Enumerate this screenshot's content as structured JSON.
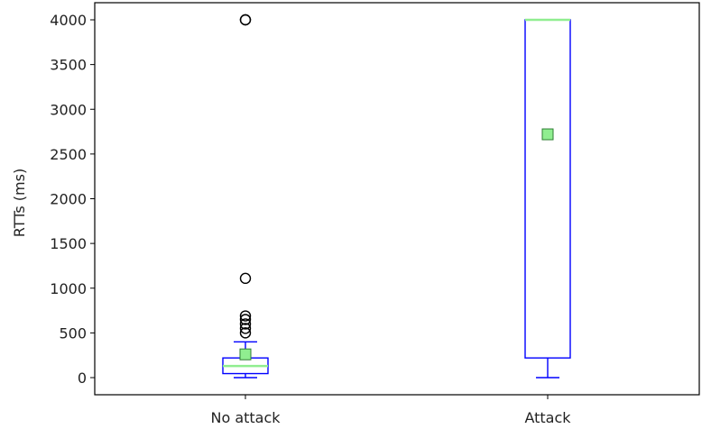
{
  "chart_data": {
    "type": "box",
    "title": "",
    "xlabel": "",
    "ylabel": "RTTs (ms)",
    "ylim": [
      -200,
      4200
    ],
    "yticks": [
      0,
      500,
      1000,
      1500,
      2000,
      2500,
      3000,
      3500,
      4000
    ],
    "ytick_labels": [
      "0",
      "500",
      "1000",
      "1500",
      "2000",
      "2500",
      "3000",
      "3500",
      "4000"
    ],
    "categories": [
      "No attack",
      "Attack"
    ],
    "boxes": [
      {
        "label": "No attack",
        "whisker_low": 0,
        "q1": 45,
        "median": 130,
        "q3": 220,
        "whisker_high": 400,
        "mean": 260,
        "outliers": [
          500,
          550,
          600,
          650,
          690,
          1110,
          4000,
          4000
        ]
      },
      {
        "label": "Attack",
        "whisker_low": 0,
        "q1": 220,
        "median": 4000,
        "q3": 4000,
        "whisker_high": 4000,
        "mean": 2720,
        "outliers": []
      }
    ],
    "colors": {
      "box": "#0000ff",
      "median": "#90ee90",
      "mean_fill": "#90ee90",
      "mean_edge": "#2e7d32",
      "outlier": "#000000",
      "axes": "#000000"
    },
    "grid": false,
    "legend": "none"
  }
}
